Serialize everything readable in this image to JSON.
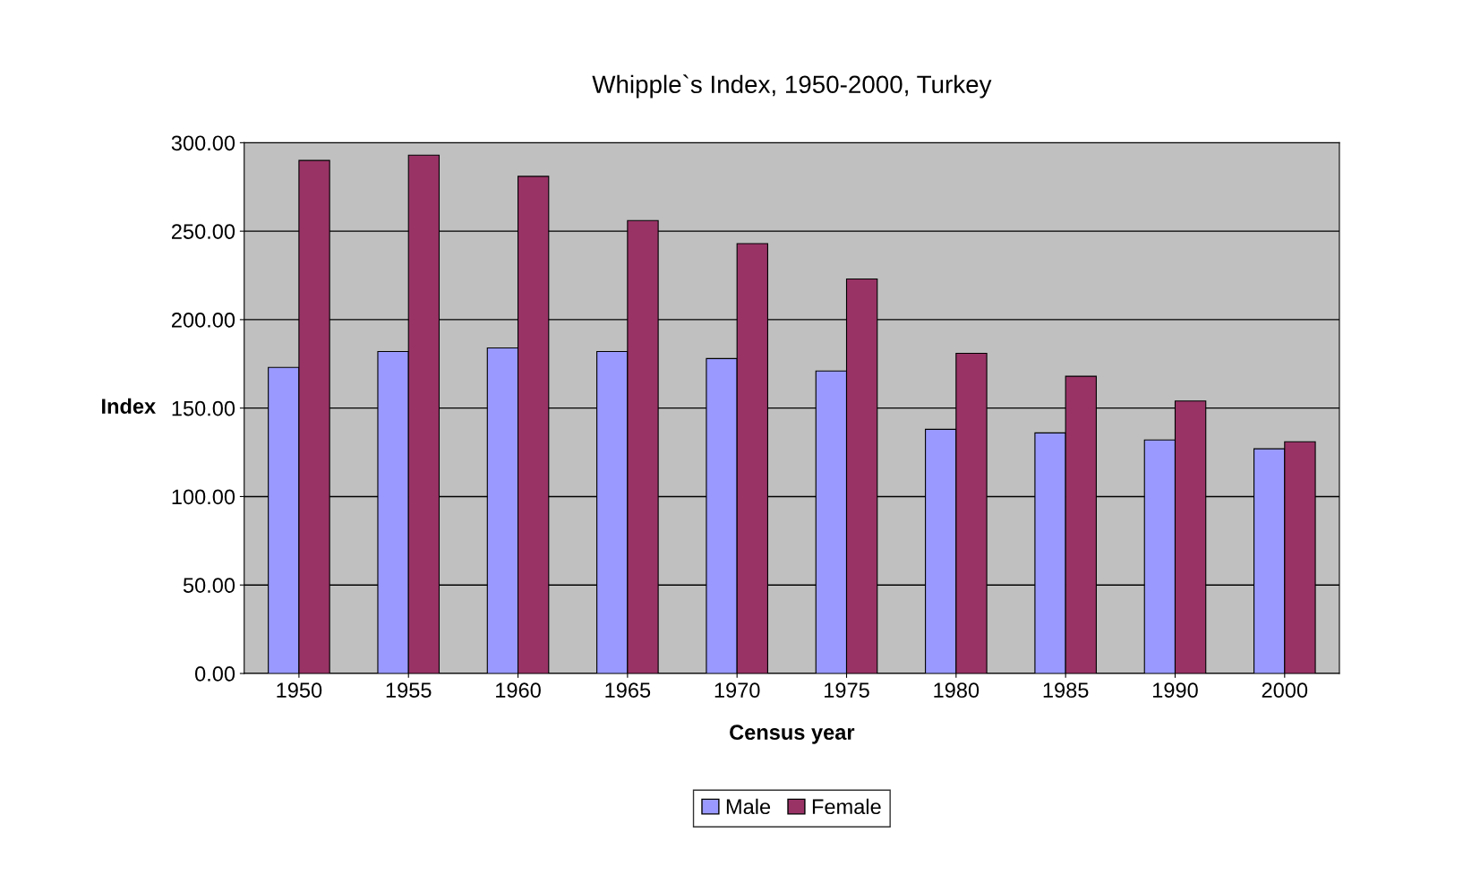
{
  "chart_data": {
    "type": "bar",
    "title": "Whipple`s Index, 1950-2000, Turkey",
    "xlabel": "Census year",
    "ylabel": "Index",
    "categories": [
      "1950",
      "1955",
      "1960",
      "1965",
      "1970",
      "1975",
      "1980",
      "1985",
      "1990",
      "2000"
    ],
    "series": [
      {
        "name": "Male",
        "color": "#9999ff",
        "values": [
          173,
          182,
          184,
          182,
          178,
          171,
          138,
          136,
          132,
          127
        ]
      },
      {
        "name": "Female",
        "color": "#993366",
        "values": [
          290,
          293,
          281,
          256,
          243,
          223,
          181,
          168,
          154,
          131
        ]
      }
    ],
    "ylim": [
      0,
      300
    ],
    "yticks": [
      {
        "value": 0,
        "label": "0.00"
      },
      {
        "value": 50,
        "label": "50.00"
      },
      {
        "value": 100,
        "label": "100.00"
      },
      {
        "value": 150,
        "label": "150.00"
      },
      {
        "value": 200,
        "label": "200.00"
      },
      {
        "value": 250,
        "label": "250.00"
      },
      {
        "value": 300,
        "label": "300.00"
      }
    ],
    "grid": "y",
    "legend": "bottom"
  }
}
